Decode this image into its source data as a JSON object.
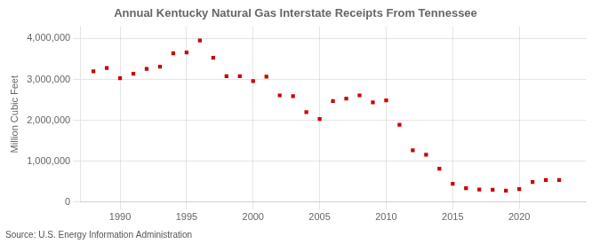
{
  "chart_data": {
    "type": "scatter",
    "title": "Annual Kentucky Natural Gas Interstate Receipts From Tennessee",
    "y_label": "Million Cubic Feet",
    "annotations": [
      "Source: U.S. Energy Information Administration"
    ],
    "x": [
      1988,
      1989,
      1990,
      1991,
      1992,
      1993,
      1994,
      1995,
      1996,
      1997,
      1998,
      1999,
      2000,
      2001,
      2002,
      2003,
      2004,
      2005,
      2006,
      2007,
      2008,
      2009,
      2010,
      2011,
      2012,
      2013,
      2014,
      2015,
      2016,
      2017,
      2018,
      2019,
      2020,
      2021,
      2022,
      2023
    ],
    "values": [
      3200000,
      3280000,
      3030000,
      3140000,
      3260000,
      3310000,
      3640000,
      3660000,
      3950000,
      3530000,
      3080000,
      3080000,
      2960000,
      3070000,
      2610000,
      2590000,
      2200000,
      2030000,
      2470000,
      2530000,
      2610000,
      2440000,
      2490000,
      1890000,
      1270000,
      1160000,
      820000,
      450000,
      340000,
      310000,
      300000,
      280000,
      320000,
      490000,
      540000,
      540000
    ],
    "color": "#cc0000",
    "marker": "square",
    "xlim": [
      1987,
      2025
    ],
    "xticks": [
      1990,
      1995,
      2000,
      2005,
      2010,
      2015,
      2020
    ],
    "ylim": [
      0,
      4300000
    ],
    "yticks": [
      0,
      {
        "value": 1000000,
        "label": "1,000,000"
      },
      {
        "value": 2000000,
        "label": "2,000,000"
      },
      {
        "value": 3000000,
        "label": "3,000,000"
      },
      {
        "value": 4000000,
        "label": "4,000,000"
      }
    ],
    "grid": true
  }
}
